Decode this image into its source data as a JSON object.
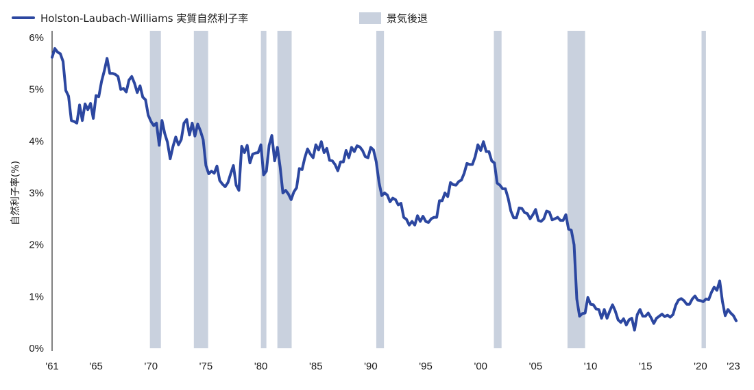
{
  "legend": {
    "series_label": "Holston-Laubach-Williams 実質自然利子率",
    "recession_label": "景気後退"
  },
  "colors": {
    "series": "#2c47a0",
    "recession": "#c9d1de",
    "axis": "#2b2b2b"
  },
  "chart_data": {
    "type": "line",
    "title": "",
    "xlabel": "",
    "ylabel": "自然利子率(%)",
    "xlim": [
      1961,
      2023.25
    ],
    "ylim": [
      0,
      6
    ],
    "y_ticks": [
      {
        "value": 0,
        "label": "0%"
      },
      {
        "value": 1,
        "label": "1%"
      },
      {
        "value": 2,
        "label": "2%"
      },
      {
        "value": 3,
        "label": "3%"
      },
      {
        "value": 4,
        "label": "4%"
      },
      {
        "value": 5,
        "label": "5%"
      },
      {
        "value": 6,
        "label": "6%"
      }
    ],
    "x_ticks": [
      {
        "value": 1961,
        "label": "'61"
      },
      {
        "value": 1965,
        "label": "'65"
      },
      {
        "value": 1970,
        "label": "'70"
      },
      {
        "value": 1975,
        "label": "'75"
      },
      {
        "value": 1980,
        "label": "'80"
      },
      {
        "value": 1985,
        "label": "'85"
      },
      {
        "value": 1990,
        "label": "'90"
      },
      {
        "value": 1995,
        "label": "'95"
      },
      {
        "value": 2000,
        "label": "'00"
      },
      {
        "value": 2005,
        "label": "'05"
      },
      {
        "value": 2010,
        "label": "'10"
      },
      {
        "value": 2015,
        "label": "'15"
      },
      {
        "value": 2020,
        "label": "'20"
      },
      {
        "value": 2023,
        "label": "'23"
      }
    ],
    "grid": false,
    "legend_position": "top",
    "recessions": [
      [
        1969.9,
        1970.9
      ],
      [
        1973.9,
        1975.2
      ],
      [
        1980.0,
        1980.5
      ],
      [
        1981.5,
        1982.8
      ],
      [
        1990.5,
        1991.2
      ],
      [
        2001.2,
        2001.9
      ],
      [
        2007.9,
        2009.5
      ],
      [
        2020.1,
        2020.5
      ]
    ],
    "series": [
      {
        "name": "Holston-Laubach-Williams 実質自然利子率",
        "x": [
          1961.0,
          1961.25,
          1961.5,
          1961.75,
          1962.0,
          1962.25,
          1962.5,
          1962.75,
          1963.0,
          1963.25,
          1963.5,
          1963.75,
          1964.0,
          1964.25,
          1964.5,
          1964.75,
          1965.0,
          1965.25,
          1965.5,
          1965.75,
          1966.0,
          1966.25,
          1966.5,
          1966.75,
          1967.0,
          1967.25,
          1967.5,
          1967.75,
          1968.0,
          1968.25,
          1968.5,
          1968.75,
          1969.0,
          1969.25,
          1969.5,
          1969.75,
          1970.0,
          1970.25,
          1970.5,
          1970.75,
          1971.0,
          1971.25,
          1971.5,
          1971.75,
          1972.0,
          1972.25,
          1972.5,
          1972.75,
          1973.0,
          1973.25,
          1973.5,
          1973.75,
          1974.0,
          1974.25,
          1974.5,
          1974.75,
          1975.0,
          1975.25,
          1975.5,
          1975.75,
          1976.0,
          1976.25,
          1976.5,
          1976.75,
          1977.0,
          1977.25,
          1977.5,
          1977.75,
          1978.0,
          1978.25,
          1978.5,
          1978.75,
          1979.0,
          1979.25,
          1979.5,
          1979.75,
          1980.0,
          1980.25,
          1980.5,
          1980.75,
          1981.0,
          1981.25,
          1981.5,
          1981.75,
          1982.0,
          1982.25,
          1982.5,
          1982.75,
          1983.0,
          1983.25,
          1983.5,
          1983.75,
          1984.0,
          1984.25,
          1984.5,
          1984.75,
          1985.0,
          1985.25,
          1985.5,
          1985.75,
          1986.0,
          1986.25,
          1986.5,
          1986.75,
          1987.0,
          1987.25,
          1987.5,
          1987.75,
          1988.0,
          1988.25,
          1988.5,
          1988.75,
          1989.0,
          1989.25,
          1989.5,
          1989.75,
          1990.0,
          1990.25,
          1990.5,
          1990.75,
          1991.0,
          1991.25,
          1991.5,
          1991.75,
          1992.0,
          1992.25,
          1992.5,
          1992.75,
          1993.0,
          1993.25,
          1993.5,
          1993.75,
          1994.0,
          1994.25,
          1994.5,
          1994.75,
          1995.0,
          1995.25,
          1995.5,
          1995.75,
          1996.0,
          1996.25,
          1996.5,
          1996.75,
          1997.0,
          1997.25,
          1997.5,
          1997.75,
          1998.0,
          1998.25,
          1998.5,
          1998.75,
          1999.0,
          1999.25,
          1999.5,
          1999.75,
          2000.0,
          2000.25,
          2000.5,
          2000.75,
          2001.0,
          2001.25,
          2001.5,
          2001.75,
          2002.0,
          2002.25,
          2002.5,
          2002.75,
          2003.0,
          2003.25,
          2003.5,
          2003.75,
          2004.0,
          2004.25,
          2004.5,
          2004.75,
          2005.0,
          2005.25,
          2005.5,
          2005.75,
          2006.0,
          2006.25,
          2006.5,
          2006.75,
          2007.0,
          2007.25,
          2007.5,
          2007.75,
          2008.0,
          2008.25,
          2008.5,
          2008.75,
          2009.0,
          2009.25,
          2009.5,
          2009.75,
          2010.0,
          2010.25,
          2010.5,
          2010.75,
          2011.0,
          2011.25,
          2011.5,
          2011.75,
          2012.0,
          2012.25,
          2012.5,
          2012.75,
          2013.0,
          2013.25,
          2013.5,
          2013.75,
          2014.0,
          2014.25,
          2014.5,
          2014.75,
          2015.0,
          2015.25,
          2015.5,
          2015.75,
          2016.0,
          2016.25,
          2016.5,
          2016.75,
          2017.0,
          2017.25,
          2017.5,
          2017.75,
          2018.0,
          2018.25,
          2018.5,
          2018.75,
          2019.0,
          2019.25,
          2019.5,
          2019.75,
          2020.0,
          2020.25,
          2020.5,
          2020.75,
          2021.0,
          2021.25,
          2021.5,
          2021.75,
          2022.0,
          2022.25,
          2022.5,
          2022.75,
          2023.0,
          2023.25
        ],
        "values": [
          5.62,
          5.79,
          5.72,
          5.69,
          5.54,
          4.98,
          4.87,
          4.4,
          4.38,
          4.35,
          4.7,
          4.4,
          4.72,
          4.61,
          4.73,
          4.44,
          4.88,
          4.86,
          5.15,
          5.36,
          5.6,
          5.31,
          5.31,
          5.29,
          5.25,
          5.0,
          5.02,
          4.95,
          5.18,
          5.25,
          5.12,
          4.94,
          5.07,
          4.85,
          4.8,
          4.5,
          4.38,
          4.3,
          4.35,
          3.92,
          4.4,
          4.15,
          3.98,
          3.66,
          3.9,
          4.08,
          3.93,
          4.03,
          4.35,
          4.42,
          4.12,
          4.35,
          4.1,
          4.33,
          4.2,
          4.03,
          3.53,
          3.37,
          3.42,
          3.38,
          3.52,
          3.24,
          3.17,
          3.12,
          3.2,
          3.37,
          3.53,
          3.15,
          3.05,
          3.9,
          3.78,
          3.92,
          3.58,
          3.75,
          3.77,
          3.78,
          3.93,
          3.35,
          3.42,
          3.92,
          4.11,
          3.62,
          3.88,
          3.5,
          3.0,
          3.05,
          2.98,
          2.87,
          3.02,
          3.1,
          3.47,
          3.45,
          3.68,
          3.85,
          3.75,
          3.68,
          3.93,
          3.83,
          3.99,
          3.78,
          3.86,
          3.63,
          3.62,
          3.55,
          3.43,
          3.6,
          3.6,
          3.82,
          3.68,
          3.88,
          3.8,
          3.91,
          3.89,
          3.82,
          3.7,
          3.68,
          3.88,
          3.83,
          3.6,
          3.2,
          2.95,
          3.0,
          2.96,
          2.83,
          2.9,
          2.87,
          2.77,
          2.8,
          2.53,
          2.49,
          2.38,
          2.45,
          2.38,
          2.56,
          2.45,
          2.55,
          2.45,
          2.43,
          2.5,
          2.53,
          2.53,
          2.85,
          2.85,
          3.0,
          2.93,
          3.2,
          3.16,
          3.15,
          3.22,
          3.25,
          3.38,
          3.57,
          3.55,
          3.55,
          3.7,
          3.93,
          3.82,
          3.99,
          3.8,
          3.8,
          3.62,
          3.58,
          3.19,
          3.15,
          3.08,
          3.08,
          2.9,
          2.65,
          2.52,
          2.52,
          2.71,
          2.7,
          2.62,
          2.6,
          2.5,
          2.58,
          2.68,
          2.47,
          2.45,
          2.5,
          2.65,
          2.63,
          2.48,
          2.5,
          2.53,
          2.47,
          2.47,
          2.58,
          2.3,
          2.28,
          2.0,
          0.95,
          0.62,
          0.67,
          0.68,
          0.98,
          0.85,
          0.84,
          0.76,
          0.75,
          0.58,
          0.75,
          0.58,
          0.72,
          0.84,
          0.72,
          0.55,
          0.5,
          0.57,
          0.45,
          0.55,
          0.58,
          0.35,
          0.65,
          0.75,
          0.62,
          0.62,
          0.68,
          0.59,
          0.48,
          0.58,
          0.62,
          0.66,
          0.61,
          0.64,
          0.6,
          0.65,
          0.83,
          0.93,
          0.96,
          0.92,
          0.85,
          0.85,
          0.95,
          1.01,
          0.93,
          0.92,
          0.9,
          0.95,
          0.94,
          1.08,
          1.18,
          1.12,
          1.3,
          0.9,
          0.63,
          0.75,
          0.68,
          0.63,
          0.53
        ]
      }
    ]
  }
}
